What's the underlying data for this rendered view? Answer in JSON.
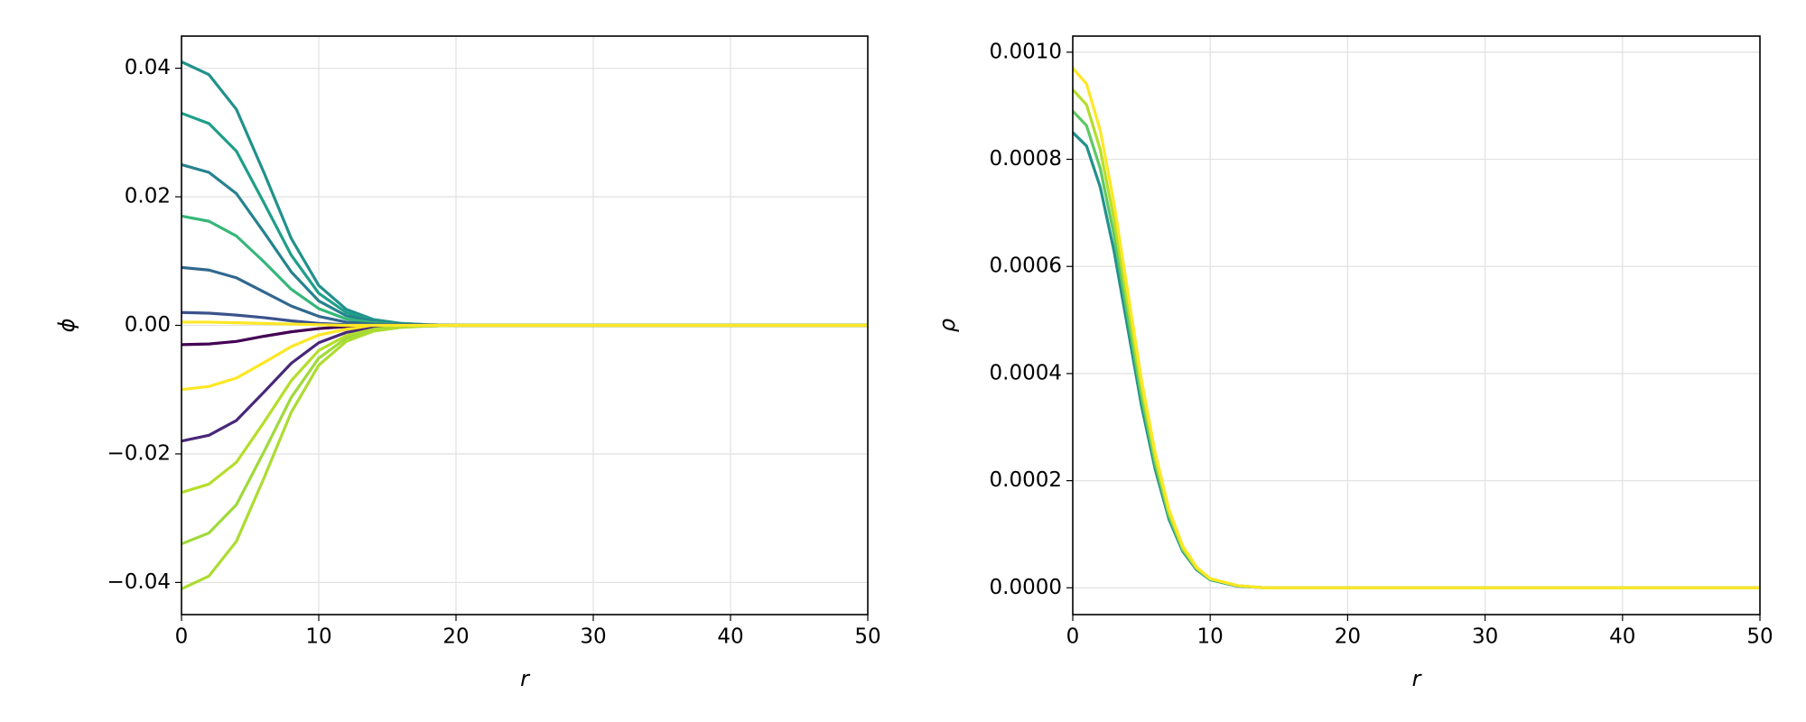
{
  "chart_data": [
    {
      "type": "line",
      "xlabel": "r",
      "ylabel": "ϕ",
      "grid": true,
      "x": [
        0,
        2,
        4,
        6,
        8,
        10,
        12,
        14,
        16,
        18,
        20,
        30,
        40,
        50
      ],
      "xlim": [
        0,
        50
      ],
      "xticks": [
        0,
        10,
        20,
        30,
        40,
        50
      ],
      "ylim": [
        -0.045,
        0.045
      ],
      "yticks": [
        {
          "value": -0.04,
          "label": "−0.04"
        },
        {
          "value": -0.02,
          "label": "−0.02"
        },
        {
          "value": 0,
          "label": "0.00"
        },
        {
          "value": 0.02,
          "label": "0.02"
        },
        {
          "value": 0.04,
          "label": "0.04"
        }
      ],
      "series": [
        {
          "color": "#21918c",
          "values": [
            0.041,
            0.039,
            0.0336,
            0.0238,
            0.0135,
            0.0062,
            0.0025,
            0.0009,
            0.0003,
            0.0001,
            0,
            0,
            0,
            0
          ]
        },
        {
          "color": "#1f9e89",
          "values": [
            0.033,
            0.0314,
            0.0271,
            0.0191,
            0.0109,
            0.005,
            0.002,
            0.0007,
            0.0003,
            0.0001,
            0,
            0,
            0,
            0
          ]
        },
        {
          "color": "#26828e",
          "values": [
            0.025,
            0.0238,
            0.0205,
            0.0145,
            0.0083,
            0.0038,
            0.0015,
            0.0006,
            0.0002,
            0.0001,
            0,
            0,
            0,
            0
          ]
        },
        {
          "color": "#35b779",
          "values": [
            0.017,
            0.0162,
            0.0139,
            0.0099,
            0.0056,
            0.0026,
            0.001,
            0.0004,
            0.0001,
            0,
            0,
            0,
            0,
            0
          ]
        },
        {
          "color": "#31688e",
          "values": [
            0.009,
            0.0086,
            0.0074,
            0.0052,
            0.003,
            0.0014,
            0.0005,
            0.0002,
            0.0001,
            0,
            0,
            0,
            0,
            0
          ]
        },
        {
          "color": "#3b528b",
          "values": [
            0.002,
            0.0019,
            0.0016,
            0.0012,
            0.0007,
            0.0003,
            0.0001,
            0,
            0,
            0,
            0,
            0,
            0,
            0
          ]
        },
        {
          "color": "#440154",
          "values": [
            -0.003,
            -0.0029,
            -0.0025,
            -0.0017,
            -0.001,
            -0.0005,
            -0.0002,
            -0.0001,
            0,
            0,
            0,
            0,
            0,
            0
          ]
        },
        {
          "color": "#fde725",
          "values": [
            -0.01,
            -0.0095,
            -0.0082,
            -0.0058,
            -0.0033,
            -0.0015,
            -0.0006,
            -0.0002,
            -0.0001,
            0,
            0,
            0,
            0,
            0
          ]
        },
        {
          "color": "#482878",
          "values": [
            -0.018,
            -0.0171,
            -0.0148,
            -0.0104,
            -0.0059,
            -0.0027,
            -0.0011,
            -0.0004,
            -0.0001,
            -0.0001,
            0,
            0,
            0,
            0
          ]
        },
        {
          "color": "#b5de2b",
          "values": [
            -0.026,
            -0.0247,
            -0.0213,
            -0.0151,
            -0.0086,
            -0.0039,
            -0.0016,
            -0.0006,
            -0.0002,
            -0.0001,
            0,
            0,
            0,
            0
          ]
        },
        {
          "color": "#9fda3a",
          "values": [
            -0.034,
            -0.0323,
            -0.0279,
            -0.0197,
            -0.0112,
            -0.0051,
            -0.002,
            -0.0007,
            -0.0003,
            -0.0001,
            0,
            0,
            0,
            0
          ]
        },
        {
          "color": "#addc30",
          "values": [
            -0.041,
            -0.039,
            -0.0336,
            -0.0238,
            -0.0135,
            -0.0062,
            -0.0025,
            -0.0009,
            -0.0003,
            -0.0001,
            0,
            0,
            0,
            0
          ]
        },
        {
          "color": "#fde725",
          "values": [
            0.0005,
            0.0005,
            0.0004,
            0.0003,
            0.0002,
            0.0001,
            0,
            0,
            0,
            0,
            0,
            0,
            0,
            0
          ]
        }
      ]
    },
    {
      "type": "line",
      "xlabel": "r",
      "ylabel": "ρ",
      "grid": true,
      "x": [
        0,
        1,
        2,
        3,
        4,
        5,
        6,
        7,
        8,
        9,
        10,
        12,
        14,
        20,
        30,
        40,
        50
      ],
      "xlim": [
        0,
        50
      ],
      "xticks": [
        0,
        10,
        20,
        30,
        40,
        50
      ],
      "ylim": [
        -5e-05,
        0.00103
      ],
      "yticks": [
        {
          "value": 0,
          "label": "0.0000"
        },
        {
          "value": 0.0002,
          "label": "0.0002"
        },
        {
          "value": 0.0004,
          "label": "0.0004"
        },
        {
          "value": 0.0006,
          "label": "0.0006"
        },
        {
          "value": 0.0008,
          "label": "0.0008"
        },
        {
          "value": 0.001,
          "label": "0.0010"
        }
      ],
      "series": [
        {
          "color": "#21918c",
          "values": [
            0.00085,
            0.000825,
            0.000748,
            0.000629,
            0.000485,
            0.00034,
            0.000221,
            0.000128,
            6.8e-05,
            3.4e-05,
            1.5e-05,
            3e-06,
            0,
            0,
            0,
            0,
            0
          ]
        },
        {
          "color": "#5ec962",
          "values": [
            0.00089,
            0.000863,
            0.000783,
            0.000659,
            0.000507,
            0.000356,
            0.000231,
            0.000134,
            7.1e-05,
            3.6e-05,
            1.6e-05,
            4e-06,
            0,
            0,
            0,
            0,
            0
          ]
        },
        {
          "color": "#b5de2b",
          "values": [
            0.00093,
            0.000902,
            0.000818,
            0.000688,
            0.00053,
            0.000372,
            0.000242,
            0.00014,
            7.4e-05,
            3.7e-05,
            1.7e-05,
            4e-06,
            0,
            0,
            0,
            0,
            0
          ]
        },
        {
          "color": "#fde725",
          "values": [
            0.00097,
            0.000941,
            0.000854,
            0.000718,
            0.000553,
            0.000388,
            0.000252,
            0.000146,
            7.8e-05,
            3.9e-05,
            1.7e-05,
            4e-06,
            0,
            0,
            0,
            0,
            0
          ]
        }
      ]
    }
  ]
}
